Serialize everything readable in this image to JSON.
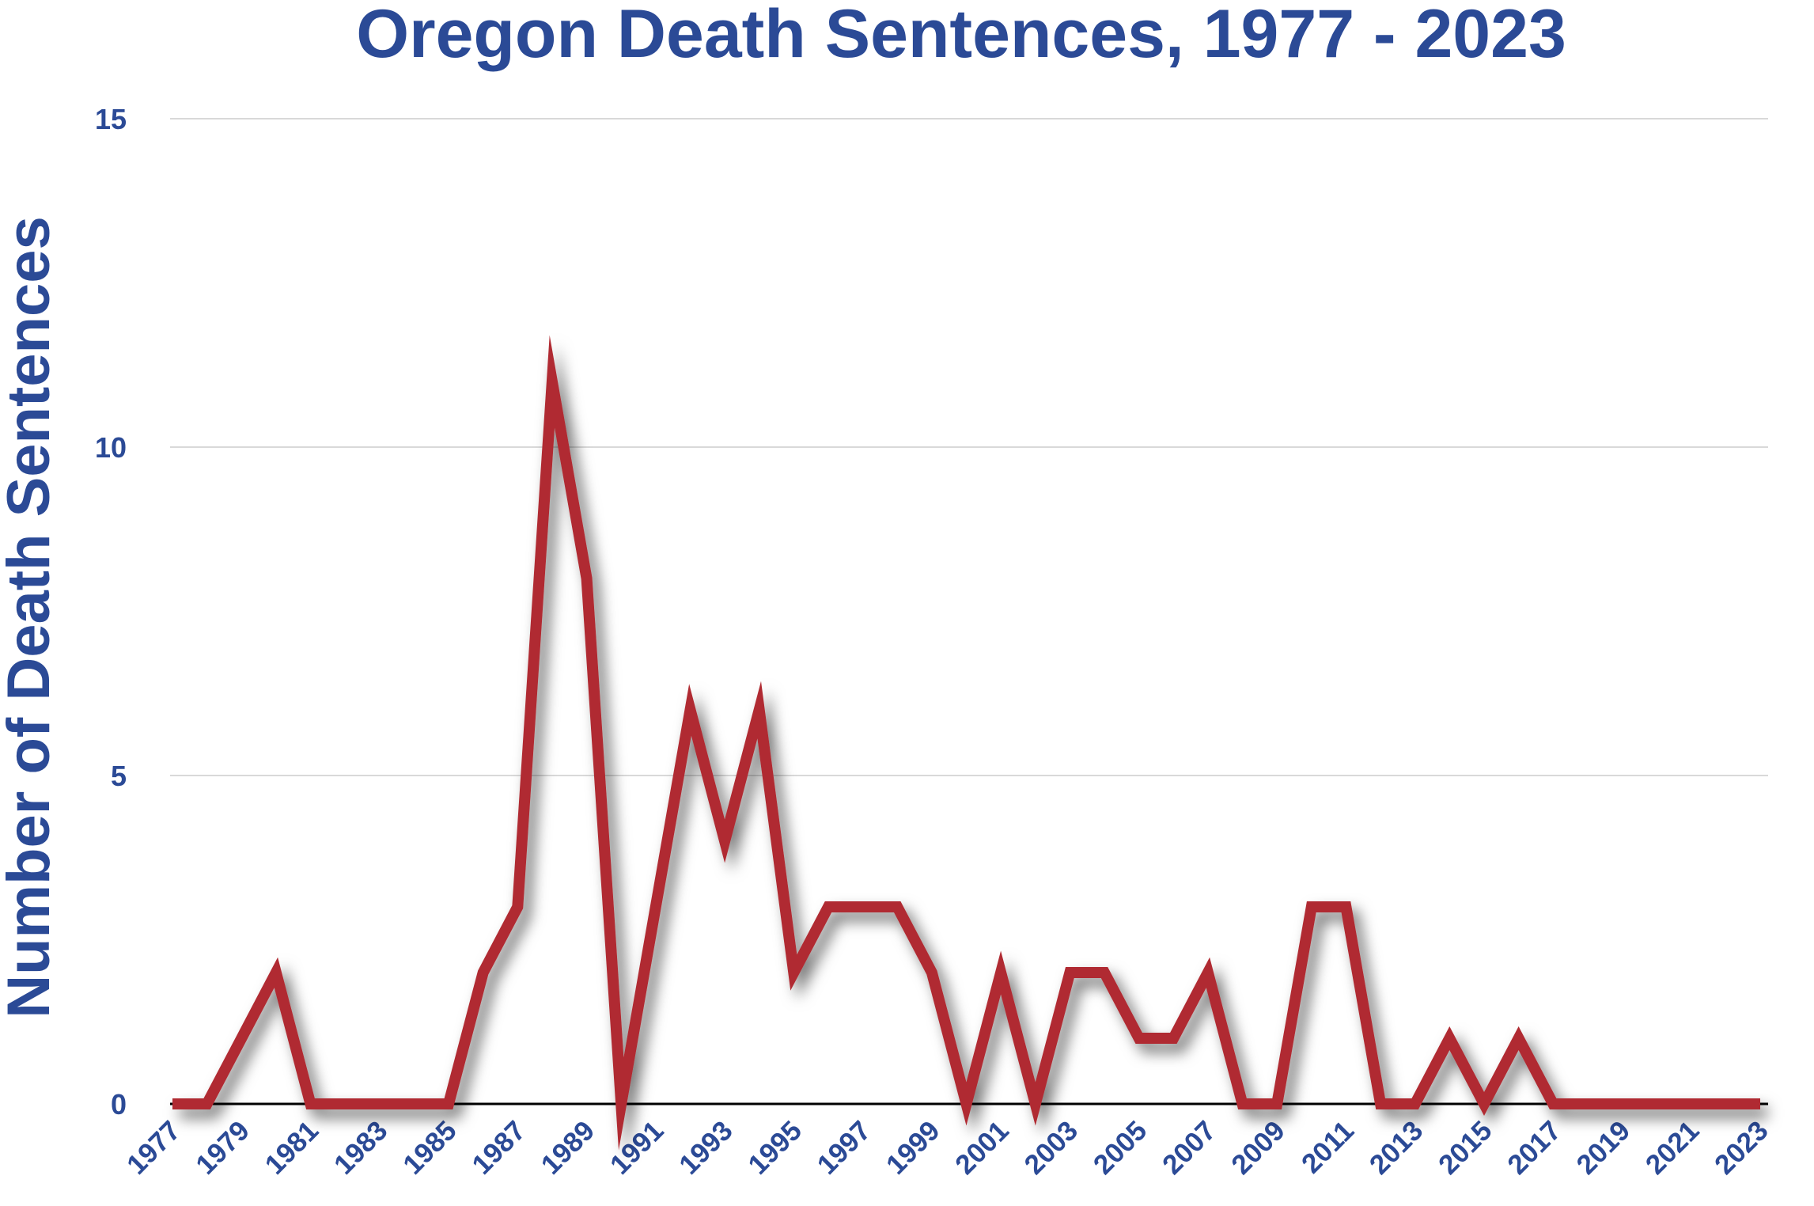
{
  "chart_data": {
    "type": "line",
    "title": "Oregon Death Sentences, 1977 - 2023",
    "xlabel": "",
    "ylabel": "Number of Death Sentences",
    "ylim": [
      0,
      15
    ],
    "yticks": [
      0,
      5,
      10,
      15
    ],
    "xtick_labels": [
      "1977",
      "1979",
      "1981",
      "1983",
      "1985",
      "1987",
      "1989",
      "1991",
      "1993",
      "1995",
      "1997",
      "1999",
      "2001",
      "2003",
      "2005",
      "2007",
      "2009",
      "2011",
      "2013",
      "2015",
      "2017",
      "2019",
      "2021",
      "2023"
    ],
    "grid": true,
    "legend": "none",
    "x": [
      1977,
      1978,
      1979,
      1980,
      1981,
      1982,
      1983,
      1984,
      1985,
      1986,
      1987,
      1988,
      1989,
      1990,
      1991,
      1992,
      1993,
      1994,
      1995,
      1996,
      1997,
      1998,
      1999,
      2000,
      2001,
      2002,
      2003,
      2004,
      2005,
      2006,
      2007,
      2008,
      2009,
      2010,
      2011,
      2012,
      2013,
      2014,
      2015,
      2016,
      2017,
      2018,
      2019,
      2020,
      2021,
      2022,
      2023
    ],
    "series": [
      {
        "values": [
          0,
          0,
          1,
          2,
          0,
          0,
          0,
          0,
          0,
          2,
          3,
          11,
          8,
          0,
          3,
          6,
          4,
          6,
          2,
          3,
          3,
          3,
          2,
          0,
          2,
          0,
          2,
          2,
          1,
          1,
          2,
          0,
          0,
          3,
          3,
          0,
          0,
          1,
          0,
          1,
          0,
          0,
          0,
          0,
          0,
          0,
          0
        ]
      }
    ],
    "colors": {
      "title": "#2b4a96",
      "axis_text": "#2b4a96",
      "line": "#b02a30",
      "gridline": "#d9d9d9",
      "baseline": "#000000"
    }
  }
}
